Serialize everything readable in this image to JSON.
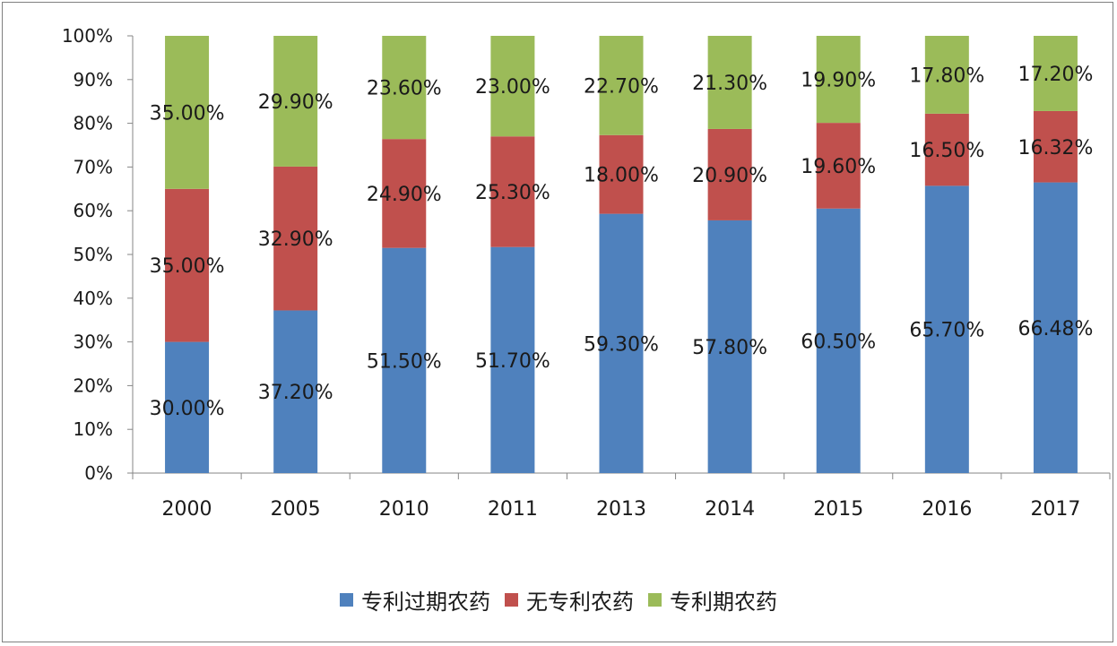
{
  "chart_data": {
    "type": "bar",
    "stacked": true,
    "categories": [
      "2000",
      "2005",
      "2010",
      "2011",
      "2013",
      "2014",
      "2015",
      "2016",
      "2017"
    ],
    "series": [
      {
        "name": "专利过期农药",
        "color": "#4f81bd",
        "values": [
          30.0,
          37.2,
          51.5,
          51.7,
          59.3,
          57.8,
          60.5,
          65.7,
          66.48
        ],
        "labels": [
          "30.00%",
          "37.20%",
          "51.50%",
          "51.70%",
          "59.30%",
          "57.80%",
          "60.50%",
          "65.70%",
          "66.48%"
        ]
      },
      {
        "name": "无专利农药",
        "color": "#c0504d",
        "values": [
          35.0,
          32.9,
          24.9,
          25.3,
          18.0,
          20.9,
          19.6,
          16.5,
          16.32
        ],
        "labels": [
          "35.00%",
          "32.90%",
          "24.90%",
          "25.30%",
          "18.00%",
          "20.90%",
          "19.60%",
          "16.50%",
          "16.32%"
        ]
      },
      {
        "name": "专利期农药",
        "color": "#9bbb59",
        "values": [
          35.0,
          29.9,
          23.6,
          23.0,
          22.7,
          21.3,
          19.9,
          17.8,
          17.2
        ],
        "labels": [
          "35.00%",
          "29.90%",
          "23.60%",
          "23.00%",
          "22.70%",
          "21.30%",
          "19.90%",
          "17.80%",
          "17.20%"
        ]
      }
    ],
    "ylim": [
      0,
      100
    ],
    "yticks": [
      "0%",
      "10%",
      "20%",
      "30%",
      "40%",
      "50%",
      "60%",
      "70%",
      "80%",
      "90%",
      "100%"
    ],
    "grid": false,
    "legend_position": "bottom"
  }
}
